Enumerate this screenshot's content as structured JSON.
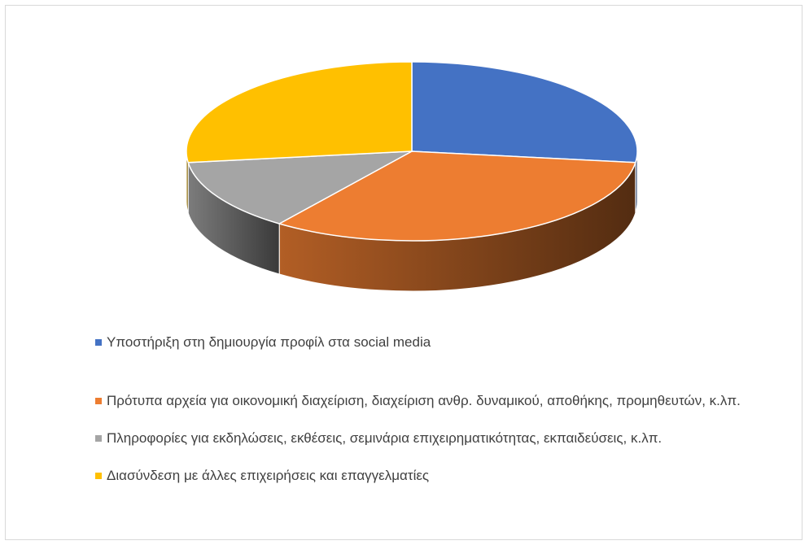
{
  "chart_data": {
    "type": "pie3d",
    "categories": [
      "Υποστήριξη στη δημιουργία προφίλ στα social media",
      "Πρότυπα αρχεία για οικονομική διαχείριση, διαχείριση ανθρ. δυναμικού, αποθήκης, προμηθευτών, κ.λπ.",
      "Πληροφορίες για εκδηλώσεις, εκθέσεις, σεμινάρια επιχειρηματικότητας, εκπαιδεύσεις, κ.λπ.",
      "Διασύνδεση με άλλες επιχειρήσεις και επαγγελματίες"
    ],
    "values": [
      27,
      33,
      13,
      27
    ],
    "colors": [
      "#4472c4",
      "#ed7d31",
      "#a5a5a5",
      "#ffc000"
    ],
    "legend": "bottom"
  }
}
